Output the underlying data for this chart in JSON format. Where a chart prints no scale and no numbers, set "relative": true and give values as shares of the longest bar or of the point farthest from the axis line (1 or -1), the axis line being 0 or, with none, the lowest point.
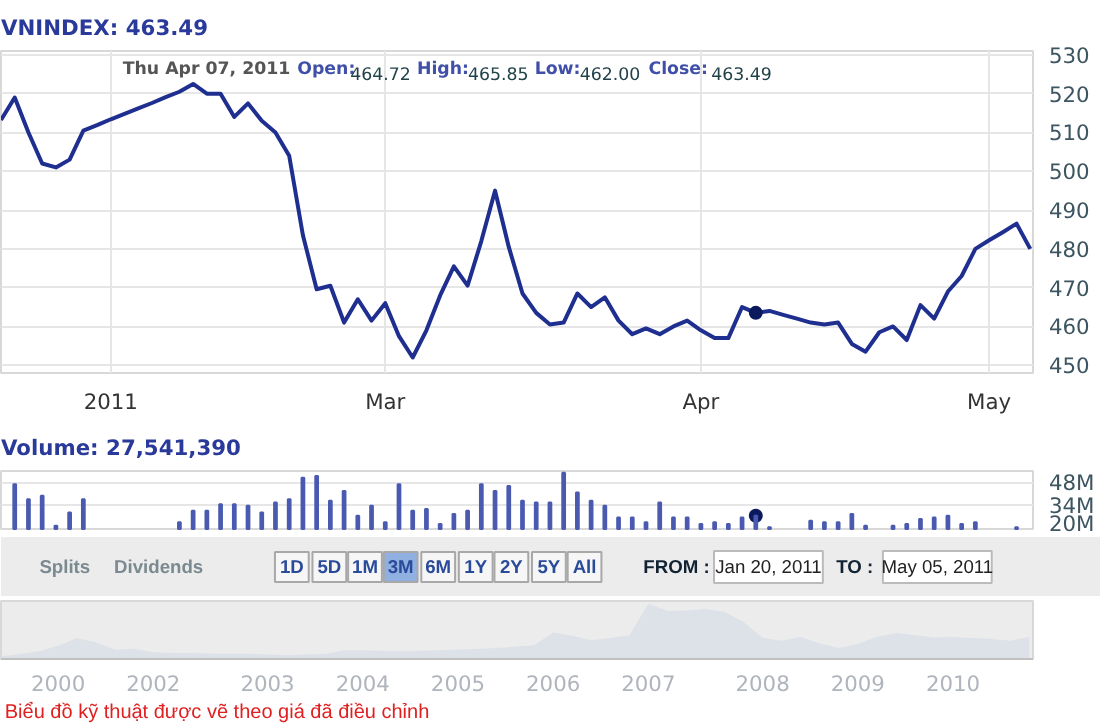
{
  "chart_data": [
    {
      "type": "line",
      "title": "VNINDEX: 463.49",
      "ylim": [
        448,
        531
      ],
      "categories": [
        null,
        null,
        null,
        null,
        null,
        null,
        null,
        null,
        "2011",
        null,
        null,
        null,
        null,
        null,
        null,
        null,
        null,
        null,
        null,
        null,
        null,
        null,
        null,
        null,
        null,
        null,
        null,
        null,
        "Mar",
        null,
        null,
        null,
        null,
        null,
        null,
        null,
        null,
        null,
        null,
        null,
        null,
        null,
        null,
        null,
        null,
        null,
        null,
        null,
        null,
        null,
        null,
        "Apr",
        null,
        null,
        null,
        null,
        null,
        null,
        null,
        null,
        null,
        null,
        null,
        null,
        null,
        null,
        null,
        null,
        null,
        null,
        null,
        null,
        "May",
        null,
        null,
        null
      ],
      "yticks": [
        450,
        460,
        470,
        480,
        490,
        500,
        510,
        520,
        530
      ],
      "grid": true,
      "annotations": [
        "Thu Apr 07, 2011",
        "Open:",
        "464.72",
        "High:",
        "465.85",
        "Low:",
        "462.00",
        "Close:",
        "463.49"
      ],
      "series": [
        {
          "color": "#1f2f8f",
          "values": [
            513.2,
            519,
            510,
            502,
            501,
            503,
            510.5,
            511.9,
            513.4,
            514.8,
            516.2,
            517.6,
            519.1,
            520.5,
            522.5,
            520,
            520,
            514,
            517.5,
            513,
            510,
            504,
            483.5,
            469.6,
            470.5,
            461,
            467,
            461.5,
            466,
            457.5,
            452,
            459,
            468,
            475.5,
            470.5,
            482,
            495,
            480.5,
            468.5,
            463.5,
            460.5,
            461,
            468.5,
            465,
            467.5,
            461.5,
            458,
            459.5,
            458,
            460,
            461.5,
            459,
            457,
            457,
            465,
            463.5,
            464,
            463,
            462,
            461,
            460.5,
            461,
            455.5,
            453.5,
            458.5,
            460,
            456.5,
            465.5,
            462,
            469,
            473,
            480,
            482.2,
            484.3,
            486.5,
            480
          ]
        },
        {
          "type": "scatter",
          "color": "#0a1a5c",
          "marker": "circle",
          "values": [
            null,
            null,
            null,
            null,
            null,
            null,
            null,
            null,
            null,
            null,
            null,
            null,
            null,
            null,
            null,
            null,
            null,
            null,
            null,
            null,
            null,
            null,
            null,
            null,
            null,
            null,
            null,
            null,
            null,
            null,
            null,
            null,
            null,
            null,
            null,
            null,
            null,
            null,
            null,
            null,
            null,
            null,
            null,
            null,
            null,
            null,
            null,
            null,
            null,
            null,
            null,
            null,
            null,
            null,
            null,
            463.5,
            null,
            null,
            null,
            null,
            null,
            null,
            null,
            null,
            null,
            null,
            null,
            null,
            null,
            null,
            null,
            null,
            null,
            null,
            null,
            null
          ]
        }
      ]
    },
    {
      "type": "bar",
      "title": "Volume: 27,541,390",
      "ylim": [
        20,
        55
      ],
      "grid": "y",
      "categories": [
        null,
        null,
        null,
        null,
        null,
        null,
        null,
        null,
        null,
        null,
        null,
        null,
        null,
        null,
        null,
        null,
        null,
        null,
        null,
        null,
        null,
        null,
        null,
        null,
        null,
        null,
        null,
        null,
        null,
        null,
        null,
        null,
        null,
        null,
        null,
        null,
        null,
        null,
        null,
        null,
        null,
        null,
        null,
        null,
        null,
        null,
        null,
        null,
        null,
        null,
        null,
        null,
        null,
        null,
        null,
        null,
        null,
        null,
        null,
        null,
        null,
        null,
        null,
        null,
        null,
        null,
        null,
        null,
        null,
        null,
        null,
        null,
        null,
        null,
        null,
        null
      ],
      "yticks": [
        {
          "value": 20,
          "label": "20M"
        },
        {
          "value": 34,
          "label": "34M"
        },
        {
          "value": 48,
          "label": "48M"
        }
      ],
      "series": [
        {
          "color": "#4a5ab0",
          "values": [
            null,
            47,
            38,
            40,
            22,
            30,
            38,
            null,
            null,
            null,
            null,
            null,
            null,
            24,
            31,
            31,
            35,
            35,
            34,
            30,
            36,
            38,
            51,
            52,
            37,
            43,
            28,
            34,
            24,
            47,
            31,
            32,
            23,
            29,
            31,
            47,
            43,
            46,
            37,
            36,
            36,
            54,
            42,
            37,
            34,
            27,
            27,
            24,
            36,
            27,
            27,
            23,
            24,
            23,
            27,
            28,
            21,
            null,
            null,
            25,
            24,
            24,
            29,
            22,
            null,
            22,
            23,
            26,
            27,
            28,
            23,
            24,
            null,
            null,
            21,
            null
          ]
        },
        {
          "type": "scatter",
          "color": "#0a1a5c",
          "marker": "circle",
          "values": [
            null,
            null,
            null,
            null,
            null,
            null,
            null,
            null,
            null,
            null,
            null,
            null,
            null,
            null,
            null,
            null,
            null,
            null,
            null,
            null,
            null,
            null,
            null,
            null,
            null,
            null,
            null,
            null,
            null,
            null,
            null,
            null,
            null,
            null,
            null,
            null,
            null,
            null,
            null,
            null,
            null,
            null,
            null,
            null,
            null,
            null,
            null,
            null,
            null,
            null,
            null,
            null,
            null,
            null,
            null,
            28,
            null,
            null,
            null,
            null,
            null,
            null,
            null,
            null,
            null,
            null,
            null,
            null,
            null,
            null,
            null,
            null,
            null,
            null,
            null,
            null
          ]
        }
      ]
    },
    {
      "type": "area",
      "relative": true,
      "categories": [
        null,
        null,
        null,
        "2000",
        null,
        null,
        null,
        null,
        "2002",
        null,
        null,
        null,
        null,
        null,
        "2003",
        null,
        null,
        null,
        null,
        "2004",
        null,
        null,
        null,
        null,
        "2005",
        null,
        null,
        null,
        null,
        "2006",
        null,
        null,
        null,
        null,
        "2007",
        null,
        null,
        null,
        null,
        null,
        "2008",
        null,
        null,
        null,
        null,
        "2009",
        null,
        null,
        null,
        null,
        "2010",
        null,
        null,
        null,
        null
      ],
      "annotations": [
        "Splits",
        "Dividends",
        "1D",
        "5D",
        "1M",
        "3M",
        "6M",
        "1Y",
        "2Y",
        "5Y",
        "All",
        "FROM :",
        "Jan 20, 2011",
        "TO :",
        "May 05, 2011",
        "Biểu đồ kỹ thuật được vẽ theo giá đã điều chỉnh"
      ],
      "series": [
        {
          "color": "#dde1e8",
          "values": [
            0.05,
            0.09,
            0.14,
            0.24,
            0.38,
            0.3,
            0.17,
            0.18,
            0.12,
            0.11,
            0.11,
            0.1,
            0.1,
            0.1,
            0.08,
            0.07,
            0.08,
            0.09,
            0.16,
            0.16,
            0.15,
            0.14,
            0.15,
            0.16,
            0.17,
            0.18,
            0.2,
            0.22,
            0.25,
            0.48,
            0.42,
            0.34,
            0.38,
            0.43,
            1,
            0.87,
            0.88,
            0.91,
            0.85,
            0.67,
            0.38,
            0.33,
            0.4,
            0.28,
            0.2,
            0.27,
            0.4,
            0.47,
            0.43,
            0.39,
            0.4,
            0.38,
            0.36,
            0.33,
            0.4
          ]
        }
      ]
    }
  ]
}
